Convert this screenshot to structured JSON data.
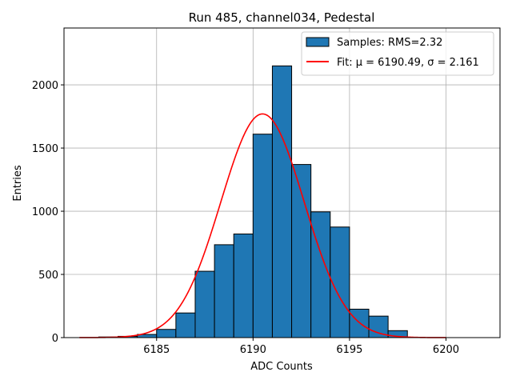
{
  "chart_data": {
    "type": "bar",
    "title": "Run 485, channel034, Pedestal",
    "xlabel": "ADC Counts",
    "ylabel": "Entries",
    "xlim": [
      6180.2,
      6202.8
    ],
    "ylim": [
      0,
      2450
    ],
    "xticks": [
      6185,
      6190,
      6195,
      6200
    ],
    "yticks": [
      0,
      500,
      1000,
      1500,
      2000
    ],
    "grid": true,
    "legend_position": "upper right",
    "histogram": {
      "name": "Samples: RMS=2.32",
      "color": "#1f77b4",
      "edge_color": "#000000",
      "bin_edges": [
        6182,
        6183,
        6184,
        6185,
        6186,
        6187,
        6188,
        6189,
        6190,
        6191,
        6192,
        6193,
        6194,
        6195,
        6196,
        6197,
        6198
      ],
      "counts": [
        5,
        10,
        25,
        65,
        195,
        525,
        735,
        820,
        1610,
        2150,
        1370,
        995,
        875,
        225,
        170,
        55,
        10
      ]
    },
    "fit": {
      "name": "Fit: μ = 6190.49, σ = 2.161",
      "color": "#ff0000",
      "mu": 6190.49,
      "sigma": 2.161,
      "amplitude": 1770,
      "x_range": [
        6181,
        6200
      ]
    }
  }
}
